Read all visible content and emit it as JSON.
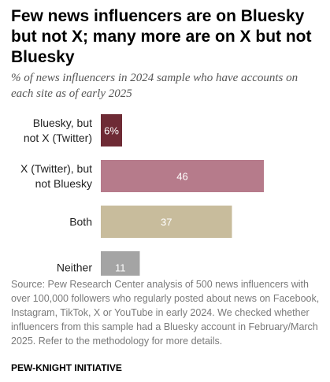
{
  "title": "Few news influencers are on Bluesky but not X; many more are on X but not Bluesky",
  "subtitle": "% of news influencers in 2024 sample who have accounts on each site as of early 2025",
  "source": "Source: Pew Research Center analysis of 500 news influencers with over 100,000 followers who regularly posted about news on Facebook, Instagram, TikTok, X or YouTube in early 2024. We checked whether influencers from this sample had a Bluesky account in February/March 2025. Refer to the methodology for more details.",
  "credit": "PEW-KNIGHT INITIATIVE",
  "chart_data": {
    "type": "bar",
    "orientation": "horizontal",
    "title": "",
    "xlabel": "",
    "ylabel": "",
    "categories": [
      [
        "Bluesky, but",
        "not X (Twitter)"
      ],
      [
        "X (Twitter), but",
        "not Bluesky"
      ],
      [
        "Both"
      ],
      [
        "Neither"
      ]
    ],
    "values": [
      6,
      46,
      37,
      11
    ],
    "value_labels": [
      "6%",
      "46",
      "37",
      "11"
    ],
    "colors": [
      "#6e2b35",
      "#b67b8b",
      "#c8bc9c",
      "#a4a4a4"
    ],
    "xlim": [
      0,
      100
    ],
    "grid": false,
    "legend": "none"
  }
}
